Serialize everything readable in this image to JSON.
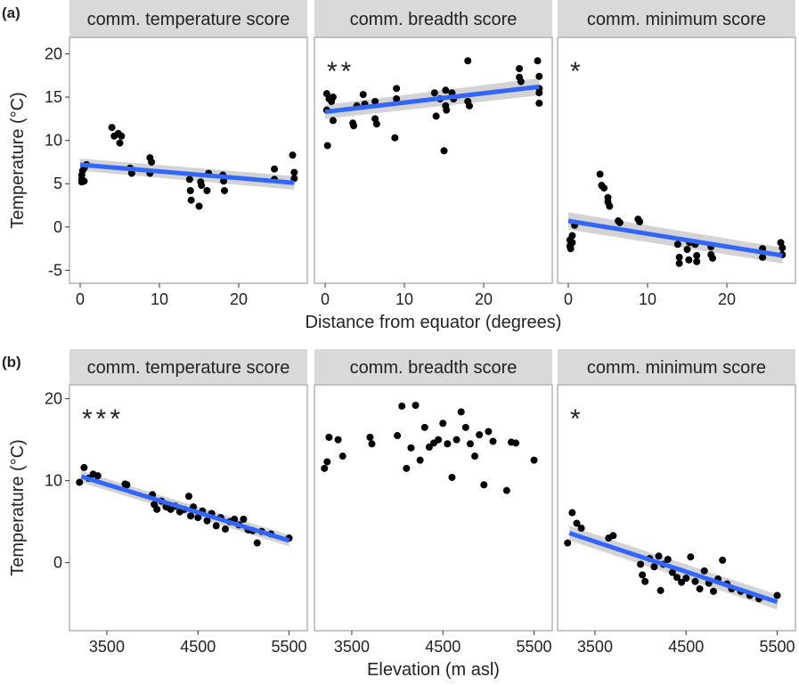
{
  "chart_data": [
    {
      "type": "scatter",
      "panel_label": "(a)",
      "ylabel": "Temperature (°C)",
      "title": "comm. temperature score",
      "xlim": [
        -1.35,
        28.65
      ],
      "ylim": [
        -6.5,
        21.9
      ],
      "xticks": [
        0,
        10,
        20
      ],
      "yticks": [
        -5,
        0,
        5,
        10,
        15,
        20
      ],
      "color": "#000000",
      "x": [
        0.2,
        0.2,
        0.2,
        0.3,
        0.5,
        0.8,
        0.5,
        4,
        4.3,
        4.8,
        5,
        5.2,
        6.3,
        6.5,
        8.8,
        9,
        8.8,
        13.8,
        13.9,
        14,
        15,
        15.2,
        15.3,
        16,
        16.2,
        18,
        18.1,
        18.2,
        24.5,
        24.5,
        26.8,
        27,
        27
      ],
      "values": [
        5.2,
        5.5,
        6,
        6.5,
        5.3,
        7.2,
        6.8,
        11.5,
        10.5,
        10.8,
        9.7,
        10.5,
        6.8,
        6.2,
        8,
        7.5,
        6.2,
        5.5,
        4.2,
        3.1,
        2.4,
        5.2,
        4.8,
        4.2,
        6.2,
        6,
        5.3,
        4.2,
        6.7,
        5.5,
        8.3,
        6.3,
        5.6
      ],
      "fit": {
        "color": "#3366ff",
        "band_color": "#c8c8c8",
        "x": [
          0,
          27
        ],
        "y": [
          7.2,
          5.1
        ],
        "lower": [
          6.5,
          4.3
        ],
        "upper": [
          7.9,
          5.9
        ]
      }
    },
    {
      "type": "scatter",
      "title": "comm. breadth score",
      "annotation": "**",
      "xlabel": "Distance from equator (degrees)",
      "xlim": [
        -1.35,
        28.65
      ],
      "ylim": [
        -6.5,
        21.9
      ],
      "xticks": [
        0,
        10,
        20
      ],
      "color": "#000000",
      "x": [
        0.2,
        0.2,
        0.3,
        0.5,
        0.8,
        1,
        1,
        3.5,
        3.6,
        4,
        4.8,
        5,
        6.3,
        6.5,
        6.3,
        8.8,
        9,
        9,
        13.8,
        14,
        14.5,
        15,
        15.2,
        15.2,
        15.3,
        16,
        16.2,
        18,
        18,
        18.2,
        24.5,
        24.5,
        24.7,
        26.8,
        27,
        27,
        27,
        27
      ],
      "values": [
        13.5,
        15.4,
        9.4,
        14.8,
        14.5,
        12.3,
        15,
        12,
        11.7,
        14,
        15.3,
        14.2,
        12.5,
        11.9,
        14.5,
        10.3,
        16,
        14.8,
        15.5,
        12.8,
        14.8,
        8.8,
        15.8,
        14,
        13.5,
        15.5,
        14.8,
        19.2,
        14.5,
        14,
        18.3,
        17.3,
        16.8,
        19.2,
        17.4,
        16,
        15.5,
        14.3
      ],
      "fit": {
        "color": "#3366ff",
        "band_color": "#c8c8c8",
        "x": [
          0,
          27
        ],
        "y": [
          13.3,
          16.2
        ],
        "lower": [
          12.5,
          15.2
        ],
        "upper": [
          14.1,
          17.2
        ]
      }
    },
    {
      "type": "scatter",
      "title": "comm. minimum score",
      "annotation": "*",
      "xlim": [
        -1.35,
        28.65
      ],
      "ylim": [
        -6.5,
        21.9
      ],
      "xticks": [
        0,
        10,
        20
      ],
      "color": "#000000",
      "x": [
        0.2,
        0.2,
        0.3,
        0.5,
        0.5,
        0.8,
        4,
        4.2,
        4.5,
        5,
        5,
        5.2,
        6.3,
        6.5,
        8.8,
        9,
        13.8,
        14,
        14,
        15,
        15.2,
        15.3,
        16,
        16.2,
        16.2,
        18,
        18,
        18.2,
        24.5,
        24.5,
        26.8,
        27,
        27
      ],
      "values": [
        -1.5,
        -2.2,
        -2.5,
        -1.8,
        -1,
        0.2,
        6.1,
        4.8,
        4.5,
        3.4,
        2.9,
        2.4,
        0.7,
        0.5,
        0.9,
        0.6,
        -2,
        -3.5,
        -4.2,
        -2.6,
        -3.8,
        -1.8,
        -2,
        -3.3,
        -4,
        -2.3,
        -3.2,
        -3.6,
        -2.5,
        -3.5,
        -1.8,
        -2.4,
        -3.2
      ],
      "fit": {
        "color": "#3366ff",
        "band_color": "#c8c8c8",
        "x": [
          0,
          27
        ],
        "y": [
          0.7,
          -3.3
        ],
        "lower": [
          -0.3,
          -4.2
        ],
        "upper": [
          1.7,
          -2.4
        ]
      }
    },
    {
      "type": "scatter",
      "panel_label": "(b)",
      "ylabel": "Temperature (°C)",
      "title": "comm. temperature score",
      "annotation": "***",
      "xlim": [
        3090,
        5700
      ],
      "ylim": [
        -8.3,
        21.7
      ],
      "xticks": [
        3500,
        4500,
        5500
      ],
      "yticks": [
        0,
        10,
        20
      ],
      "color": "#000000",
      "x": [
        3200,
        3250,
        3300,
        3350,
        3400,
        3700,
        3720,
        4000,
        4020,
        4050,
        4100,
        4150,
        4200,
        4250,
        4300,
        4350,
        4400,
        4420,
        4450,
        4500,
        4550,
        4600,
        4650,
        4700,
        4750,
        4800,
        4850,
        4900,
        4950,
        5000,
        5050,
        5100,
        5150,
        5200,
        5300,
        5500
      ],
      "values": [
        9.8,
        11.6,
        10.3,
        10.8,
        10.6,
        9.6,
        9.5,
        8.3,
        7.1,
        6.5,
        7.5,
        6.8,
        6.5,
        6.9,
        6.2,
        6.5,
        8.1,
        5.7,
        6.8,
        5.5,
        6.3,
        5.1,
        6,
        4.5,
        5.5,
        4.1,
        5,
        5.3,
        4.6,
        5.3,
        4,
        3.9,
        2.4,
        3.8,
        3.5,
        3
      ],
      "fit": {
        "color": "#3366ff",
        "band_color": "#c8c8c8",
        "x": [
          3220,
          5500
        ],
        "y": [
          10.5,
          2.7
        ],
        "lower": [
          9.8,
          2.0
        ],
        "upper": [
          11.2,
          3.4
        ]
      }
    },
    {
      "type": "scatter",
      "title": "comm. breadth score",
      "xlabel": "Elevation (m asl)",
      "xlim": [
        3090,
        5700
      ],
      "ylim": [
        -8.3,
        21.7
      ],
      "xticks": [
        3500,
        4500,
        5500
      ],
      "color": "#000000",
      "x": [
        3200,
        3230,
        3250,
        3350,
        3400,
        3700,
        3720,
        4000,
        4050,
        4100,
        4150,
        4200,
        4250,
        4300,
        4350,
        4400,
        4450,
        4500,
        4550,
        4600,
        4650,
        4700,
        4750,
        4800,
        4850,
        4900,
        4950,
        5000,
        5050,
        5200,
        5250,
        5300,
        5500
      ],
      "values": [
        11.5,
        12.3,
        15.3,
        15,
        13,
        15.3,
        14.5,
        15.5,
        19.1,
        11.5,
        14,
        19.2,
        12.5,
        16.5,
        14.1,
        14.6,
        15,
        17,
        14.5,
        10.4,
        15,
        18.4,
        16.5,
        14.5,
        13,
        15.6,
        9.5,
        16,
        14.8,
        8.8,
        14.7,
        14.6,
        12.5
      ]
    },
    {
      "type": "scatter",
      "title": "comm. minimum score",
      "annotation": "*",
      "xlim": [
        3090,
        5700
      ],
      "ylim": [
        -8.3,
        21.7
      ],
      "xticks": [
        3500,
        4500,
        5500
      ],
      "color": "#000000",
      "x": [
        3200,
        3250,
        3300,
        3350,
        3650,
        3700,
        4000,
        4020,
        4050,
        4100,
        4150,
        4200,
        4220,
        4250,
        4300,
        4350,
        4400,
        4450,
        4500,
        4550,
        4600,
        4650,
        4700,
        4750,
        4800,
        4850,
        4900,
        4950,
        5000,
        5100,
        5200,
        5300,
        5500
      ],
      "values": [
        2.4,
        6.1,
        4.8,
        4.2,
        3,
        3.3,
        -0.2,
        -1.5,
        -2.3,
        0.5,
        -0.5,
        0.8,
        -3.4,
        -0.2,
        0.4,
        -1.2,
        -1.8,
        -2.4,
        -1.9,
        0.7,
        -2.3,
        -3.2,
        -1,
        -2.5,
        -3.5,
        -2,
        0.3,
        -2.6,
        -3.2,
        -3.5,
        -4,
        -4.4,
        -4
      ],
      "fit": {
        "color": "#3366ff",
        "band_color": "#c8c8c8",
        "x": [
          3220,
          5500
        ],
        "y": [
          3.6,
          -4.8
        ],
        "lower": [
          2.7,
          -5.7
        ],
        "upper": [
          4.5,
          -3.9
        ]
      }
    }
  ]
}
